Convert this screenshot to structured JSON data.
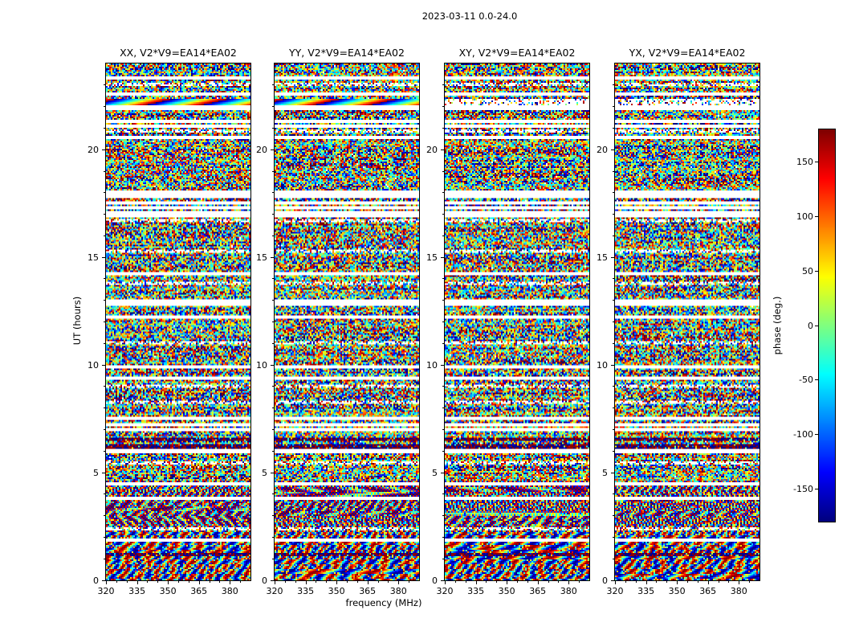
{
  "figure": {
    "title": "2023-03-11 0.0-24.0",
    "xlabel": "frequency (MHz)",
    "ylabel": "UT (hours)"
  },
  "panels": [
    {
      "pol": "XX",
      "title": "XX, V2*V9=EA14*EA02"
    },
    {
      "pol": "YY",
      "title": "YY, V2*V9=EA14*EA02"
    },
    {
      "pol": "XY",
      "title": "XY, V2*V9=EA14*EA02"
    },
    {
      "pol": "YX",
      "title": "YX, V2*V9=EA14*EA02"
    }
  ],
  "colorbar": {
    "label": "phase (deg.)"
  },
  "chart_data": {
    "type": "heatmap",
    "title": "2023-03-11 0.0-24.0",
    "layout": "four waterfall panels side by side (one per polarization), shared axes, jet colorbar at right",
    "panels": [
      "XX, V2*V9=EA14*EA02",
      "YY, V2*V9=EA14*EA02",
      "XY, V2*V9=EA14*EA02",
      "YX, V2*V9=EA14*EA02"
    ],
    "x": {
      "label": "frequency (MHz)",
      "range": [
        320,
        390
      ],
      "ticks": [
        320,
        335,
        350,
        365,
        380
      ],
      "minor_step": 5
    },
    "y": {
      "label": "UT (hours)",
      "range": [
        0,
        24
      ],
      "ticks": [
        0,
        5,
        10,
        15,
        20
      ],
      "minor_step": 1
    },
    "colorbar": {
      "label": "phase (deg.)",
      "range": [
        -180,
        180
      ],
      "ticks": [
        150,
        100,
        50,
        0,
        -50,
        -100,
        -150
      ],
      "colormap": "jet"
    },
    "content": "interferometric visibility phase versus frequency and time; noise-like phases uniformly spanning -180..180 deg; white horizontal rows are flagged time ranges; dark rows near UT 6.5 and 1.2; smooth phase-gradient rainbow band near UT 22.2 in XX and YY; coherent fringe / checkerboard structure below UT ~4.6",
    "flagged_ut_rows": [
      23.35,
      22.55,
      21.95,
      21.3,
      21.1,
      20.6,
      18.0,
      17.8,
      17.55,
      17.3,
      17.1,
      16.9,
      14.2,
      12.95,
      12.85,
      12.2,
      9.9,
      9.4,
      7.5,
      7.25,
      7.0,
      6.0,
      4.5,
      3.8,
      1.9
    ],
    "partial_flagged_ut_rows": [
      23.0,
      20.85,
      16.7,
      15.3,
      13.8,
      11.0,
      9.0,
      8.3,
      5.45,
      2.4
    ],
    "dark_ut_rows": [
      6.55,
      6.22,
      1.2
    ],
    "gradient_band": {
      "ut": 22.2,
      "half_width": 0.16,
      "panels": [
        "XX",
        "YY"
      ]
    },
    "fringe": {
      "max_ut": 4.6,
      "checker_min_ut": 2.25
    }
  }
}
